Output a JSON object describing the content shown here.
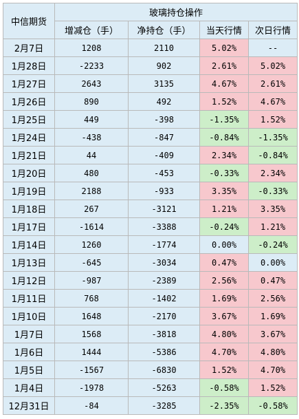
{
  "title": "玻璃持仓操作",
  "corner_label": "中信期货",
  "headers": [
    "增减仓（手）",
    "净持仓（手）",
    "当天行情",
    "次日行情"
  ],
  "colors": {
    "header_bg": "#dcecf6",
    "up_bg": "#f7c8cd",
    "down_bg": "#cdeec9",
    "flat_bg": "#dcecf6",
    "border": "#b9b9b9"
  },
  "rows": [
    {
      "date": "2月7日",
      "change": "1208",
      "net": "2110",
      "today": "5.02%",
      "next": "--"
    },
    {
      "date": "1月28日",
      "change": "-2233",
      "net": "902",
      "today": "2.61%",
      "next": "5.02%"
    },
    {
      "date": "1月27日",
      "change": "2643",
      "net": "3135",
      "today": "4.67%",
      "next": "2.61%"
    },
    {
      "date": "1月26日",
      "change": "890",
      "net": "492",
      "today": "1.52%",
      "next": "4.67%"
    },
    {
      "date": "1月25日",
      "change": "449",
      "net": "-398",
      "today": "-1.35%",
      "next": "1.52%"
    },
    {
      "date": "1月24日",
      "change": "-438",
      "net": "-847",
      "today": "-0.84%",
      "next": "-1.35%"
    },
    {
      "date": "1月21日",
      "change": "44",
      "net": "-409",
      "today": "2.34%",
      "next": "-0.84%"
    },
    {
      "date": "1月20日",
      "change": "480",
      "net": "-453",
      "today": "-0.33%",
      "next": "2.34%"
    },
    {
      "date": "1月19日",
      "change": "2188",
      "net": "-933",
      "today": "3.35%",
      "next": "-0.33%"
    },
    {
      "date": "1月18日",
      "change": "267",
      "net": "-3121",
      "today": "1.21%",
      "next": "3.35%"
    },
    {
      "date": "1月17日",
      "change": "-1614",
      "net": "-3388",
      "today": "-0.24%",
      "next": "1.21%"
    },
    {
      "date": "1月14日",
      "change": "1260",
      "net": "-1774",
      "today": "0.00%",
      "next": "-0.24%"
    },
    {
      "date": "1月13日",
      "change": "-645",
      "net": "-3034",
      "today": "0.47%",
      "next": "0.00%"
    },
    {
      "date": "1月12日",
      "change": "-987",
      "net": "-2389",
      "today": "2.56%",
      "next": "0.47%"
    },
    {
      "date": "1月11日",
      "change": "768",
      "net": "-1402",
      "today": "1.69%",
      "next": "2.56%"
    },
    {
      "date": "1月10日",
      "change": "1648",
      "net": "-2170",
      "today": "3.67%",
      "next": "1.69%"
    },
    {
      "date": "1月7日",
      "change": "1568",
      "net": "-3818",
      "today": "4.80%",
      "next": "3.67%"
    },
    {
      "date": "1月6日",
      "change": "1444",
      "net": "-5386",
      "today": "4.70%",
      "next": "4.80%"
    },
    {
      "date": "1月5日",
      "change": "-1567",
      "net": "-6830",
      "today": "1.52%",
      "next": "4.70%"
    },
    {
      "date": "1月4日",
      "change": "-1978",
      "net": "-5263",
      "today": "-0.58%",
      "next": "1.52%"
    },
    {
      "date": "12月31日",
      "change": "-84",
      "net": "-3285",
      "today": "-2.35%",
      "next": "-0.58%"
    }
  ]
}
